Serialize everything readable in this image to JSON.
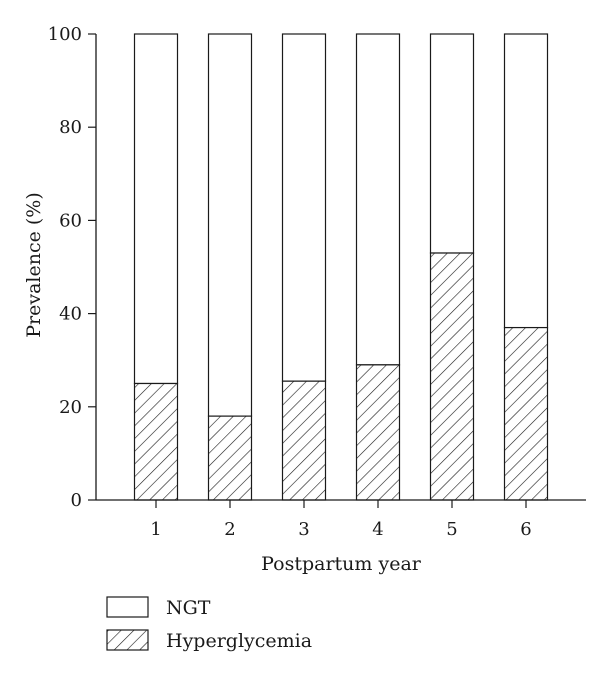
{
  "chart_data": {
    "type": "bar",
    "stacked": true,
    "percent_stacked": true,
    "categories": [
      "1",
      "2",
      "3",
      "4",
      "5",
      "6"
    ],
    "series": [
      {
        "name": "Hyperglycemia",
        "values": [
          25,
          18,
          25.5,
          29,
          53,
          37
        ]
      },
      {
        "name": "NGT",
        "values": [
          75,
          82,
          74.5,
          71,
          47,
          63
        ]
      }
    ],
    "title": "",
    "xlabel": "Postpartum year",
    "ylabel": "Prevalence (%)",
    "ylim": [
      0,
      100
    ],
    "yticks": [
      0,
      20,
      40,
      60,
      80,
      100
    ],
    "grid": false,
    "legend_position": "bottom-left"
  },
  "legend": [
    {
      "label": "NGT",
      "pattern": "white"
    },
    {
      "label": "Hyperglycemia",
      "pattern": "hatched"
    }
  ]
}
